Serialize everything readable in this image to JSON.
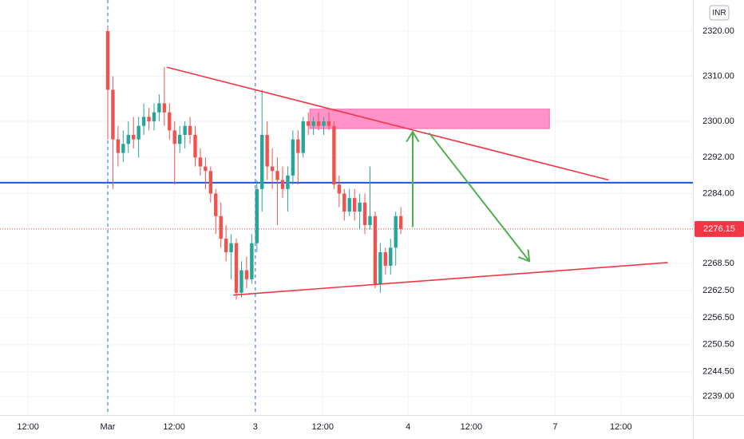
{
  "chart_data": {
    "type": "candlestick",
    "currency": "INR",
    "x": [
      0,
      1,
      2,
      3,
      4,
      5,
      6,
      7,
      8,
      9,
      10,
      11,
      12,
      13,
      14,
      15,
      16,
      17,
      18,
      19,
      20,
      21,
      22,
      23,
      24,
      25,
      26,
      27,
      28,
      29,
      30,
      31,
      32,
      33,
      34,
      35,
      36,
      37,
      38,
      39,
      40,
      41,
      42,
      43,
      44,
      45,
      46,
      47,
      48,
      49,
      50,
      51,
      52,
      53,
      54,
      55,
      56,
      57
    ],
    "series": [
      {
        "open": [
          2320,
          2307,
          2296,
          2293,
          2295,
          2297,
          2296,
          2299,
          2301,
          2300,
          2302,
          2304,
          2302,
          2298,
          2295,
          2297,
          2299,
          2297,
          2292,
          2290,
          2289,
          2284,
          2279,
          2274,
          2271,
          2273,
          2262,
          2267,
          2265,
          2273,
          2285,
          2297,
          2290,
          2289,
          2287,
          2285,
          2288,
          2296,
          2293,
          2300,
          2299,
          2300,
          2299,
          2300,
          2299,
          2286,
          2284,
          2280,
          2283,
          2280,
          2282,
          2277,
          2279,
          2264,
          2271,
          2268,
          2272,
          2279
        ],
        "high": [
          2321,
          2310,
          2299,
          2298,
          2300,
          2301,
          2301,
          2304,
          2303,
          2304,
          2306,
          2312,
          2304,
          2300,
          2299,
          2300,
          2301,
          2299,
          2294,
          2292,
          2290,
          2285,
          2282,
          2277,
          2275,
          2274,
          2269,
          2270,
          2275,
          2287,
          2307,
          2300,
          2294,
          2292,
          2290,
          2290,
          2298,
          2298,
          2301,
          2302,
          2301,
          2302,
          2301,
          2302,
          2300,
          2288,
          2285,
          2285,
          2285,
          2284,
          2284,
          2290,
          2280,
          2273,
          2272,
          2274,
          2280,
          2281
        ],
        "low": [
          2296,
          2285,
          2290,
          2291,
          2293,
          2294,
          2292,
          2297,
          2298,
          2298,
          2300,
          2299,
          2296,
          2286,
          2293,
          2294,
          2295,
          2290,
          2288,
          2285,
          2282,
          2275,
          2272,
          2269,
          2265,
          2260.5,
          2261,
          2263,
          2264,
          2271,
          2280,
          2287,
          2285,
          2277,
          2283,
          2280,
          2286,
          2286,
          2292,
          2297,
          2297,
          2298,
          2297,
          2298,
          2285,
          2281,
          2278,
          2279,
          2278,
          2276,
          2275,
          2276,
          2263,
          2262,
          2266,
          2266,
          2268,
          2275
        ],
        "close": [
          2307,
          2296,
          2293,
          2295,
          2297,
          2296,
          2299,
          2301,
          2300,
          2302,
          2304,
          2302,
          2298,
          2295,
          2297,
          2299,
          2297,
          2292,
          2290,
          2289,
          2284,
          2279,
          2274,
          2271,
          2273,
          2262,
          2267,
          2265,
          2273,
          2285,
          2297,
          2290,
          2289,
          2287,
          2285,
          2288,
          2296,
          2293,
          2300,
          2299,
          2300,
          2299,
          2300,
          2299,
          2286,
          2284,
          2280,
          2283,
          2280,
          2282,
          2277,
          2279,
          2264,
          2271,
          2268,
          2272,
          2279,
          2276.15
        ],
        "up_color": "#26a69a",
        "down_color": "#ef5350"
      }
    ],
    "xlim": [
      -20.96,
      113.8
    ],
    "xticks": [
      {
        "value": -15.5,
        "label": "12:00"
      },
      {
        "value": 0,
        "label": "Mar"
      },
      {
        "value": 12.9,
        "label": "12:00"
      },
      {
        "value": 28.7,
        "label": "3"
      },
      {
        "value": 41.8,
        "label": "12:00"
      },
      {
        "value": 58.4,
        "label": "4"
      },
      {
        "value": 70.7,
        "label": "12:00"
      },
      {
        "value": 87,
        "label": "7"
      },
      {
        "value": 99.8,
        "label": "12:00"
      }
    ],
    "ylim": [
      2234.9,
      2326.9
    ],
    "yticks": [
      {
        "value": 2320,
        "label": "2320.00"
      },
      {
        "value": 2310,
        "label": "2310.00"
      },
      {
        "value": 2300,
        "label": "2300.00"
      },
      {
        "value": 2292,
        "label": "2292.00"
      },
      {
        "value": 2284,
        "label": "2284.00"
      },
      {
        "value": 2268.5,
        "label": "2268.50"
      },
      {
        "value": 2262.5,
        "label": "2262.50"
      },
      {
        "value": 2256.5,
        "label": "2256.50"
      },
      {
        "value": 2250.5,
        "label": "2250.50"
      },
      {
        "value": 2244.5,
        "label": "2244.50"
      },
      {
        "value": 2239,
        "label": "2239.00"
      }
    ],
    "last_price": 2276.15,
    "last_price_color": "#f23645",
    "grid": true,
    "drawings": {
      "horizontal_line": {
        "value": 2286.4,
        "color": "#1e53e5"
      },
      "vertical_lines": {
        "x": [
          0,
          28.7
        ],
        "color": "#2962ff"
      },
      "zone": {
        "x": [
          39.3,
          85.9
        ],
        "y": [
          2298.4,
          2302.7
        ],
        "color": "#ff80c0"
      },
      "trend_lines": [
        {
          "x": [
            11.5,
            97.4
          ],
          "y": [
            2312,
            2287
          ],
          "color": "#f23645"
        },
        {
          "x": [
            24.4,
            108.9
          ],
          "y": [
            2261.5,
            2268.7
          ],
          "color": "#f23645"
        }
      ],
      "arrows": [
        {
          "x": [
            59.3,
            59.3
          ],
          "y": [
            2276.7,
            2297.7
          ]
        },
        {
          "x": [
            62.6,
            82
          ],
          "y": [
            2297.3,
            2269
          ]
        }
      ],
      "arrow_color": "#4caf50"
    }
  }
}
